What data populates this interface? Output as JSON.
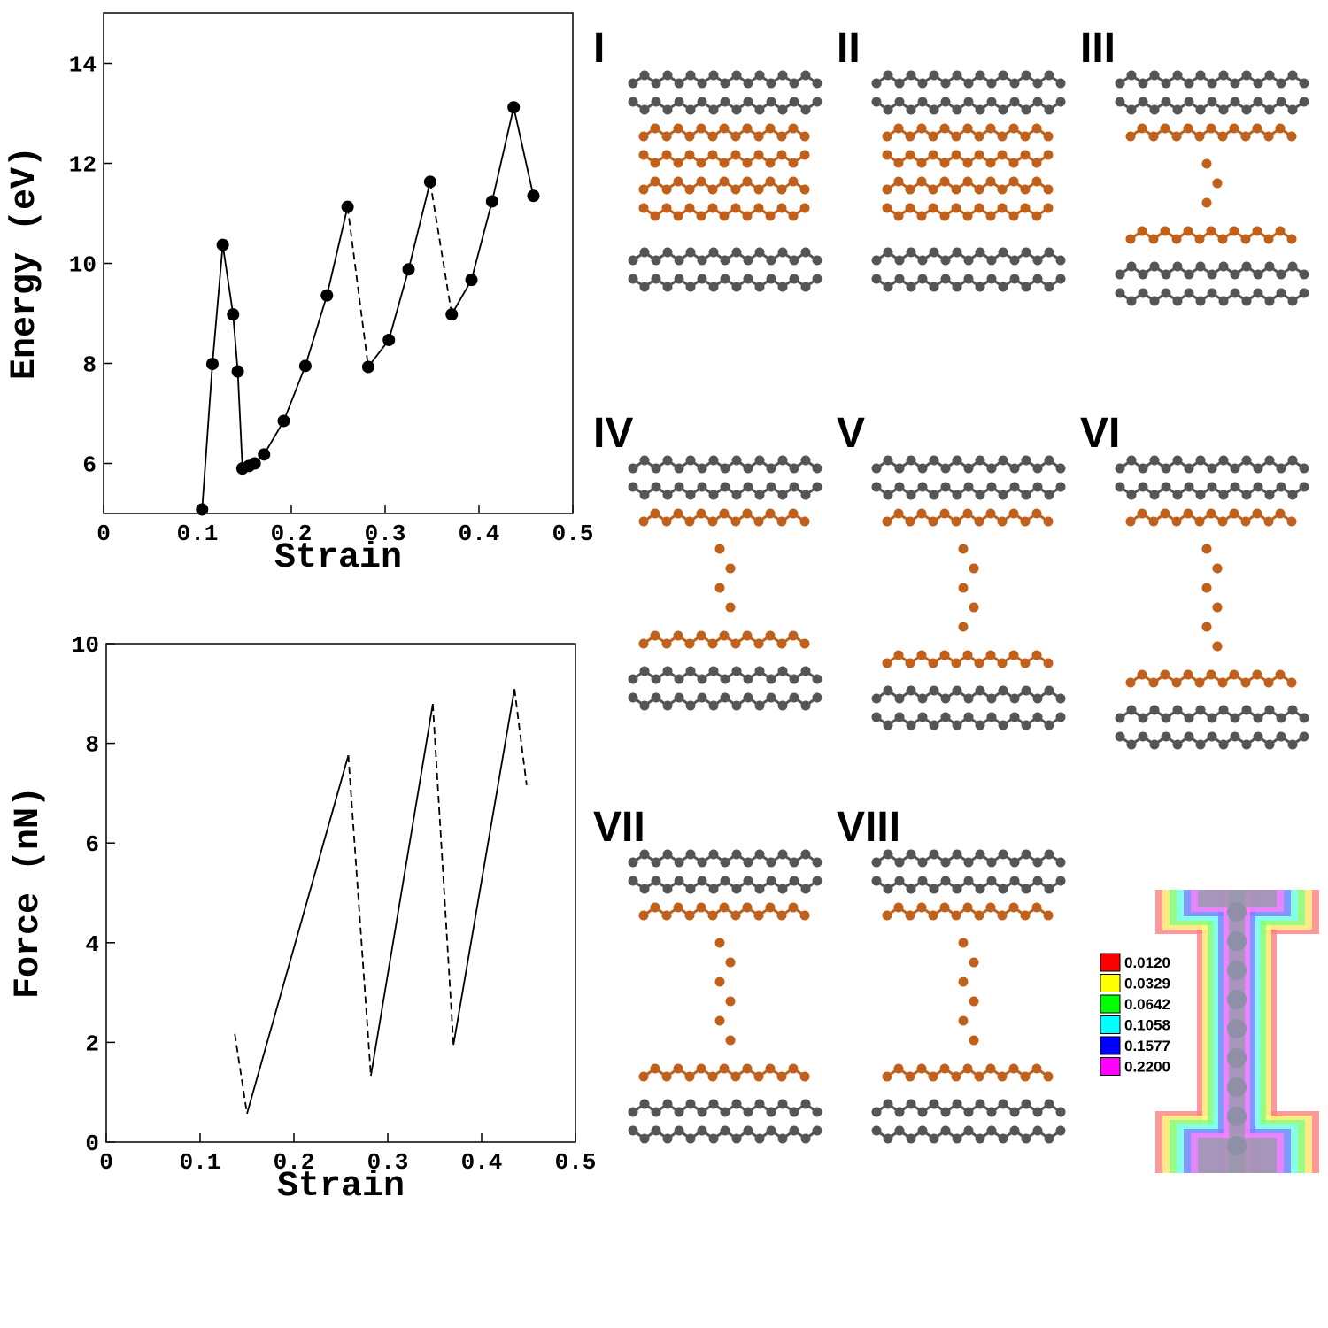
{
  "chart_data": [
    {
      "type": "line",
      "xlabel": "Strain",
      "ylabel": "Energy (eV)",
      "xlim": [
        0,
        0.5
      ],
      "ylim": [
        5,
        15
      ],
      "xticks": [
        0,
        0.1,
        0.2,
        0.3,
        0.4,
        0.5
      ],
      "yticks": [
        6,
        8,
        10,
        12,
        14
      ],
      "markers": true,
      "color": "#000000",
      "x": [
        0.105,
        0.116,
        0.127,
        0.138,
        0.143,
        0.148,
        0.155,
        0.161,
        0.171,
        0.192,
        0.215,
        0.238,
        0.26,
        0.282,
        0.304,
        0.325,
        0.348,
        0.371,
        0.392,
        0.414,
        0.437,
        0.458
      ],
      "values": [
        5.08,
        7.99,
        10.37,
        8.98,
        7.84,
        5.9,
        5.95,
        6.0,
        6.18,
        6.85,
        7.95,
        9.36,
        11.13,
        7.93,
        8.47,
        9.88,
        11.63,
        8.98,
        9.67,
        11.24,
        13.12,
        11.35
      ],
      "line_styles": [
        "solid",
        "solid",
        "solid",
        "solid",
        "solid",
        "solid",
        "solid",
        "solid",
        "solid",
        "solid",
        "solid",
        "solid",
        "dashed",
        "solid",
        "solid",
        "solid",
        "dashed",
        "solid",
        "solid",
        "solid",
        "solid"
      ]
    },
    {
      "type": "line",
      "xlabel": "Strain",
      "ylabel": "Force (nN)",
      "xlim": [
        0,
        0.5
      ],
      "ylim": [
        0,
        10
      ],
      "xticks": [
        0,
        0.1,
        0.2,
        0.3,
        0.4,
        0.5
      ],
      "yticks": [
        0,
        2,
        4,
        6,
        8,
        10
      ],
      "markers": false,
      "color": "#000000",
      "x": [
        0.137,
        0.15,
        0.258,
        0.282,
        0.348,
        0.37,
        0.435,
        0.448
      ],
      "values": [
        2.17,
        0.57,
        7.76,
        1.33,
        8.79,
        1.95,
        9.09,
        7.16
      ],
      "line_styles": [
        "dashed",
        "solid",
        "dashed",
        "solid",
        "dashed",
        "solid",
        "dashed"
      ]
    }
  ],
  "panels": [
    "I",
    "II",
    "III",
    "IV",
    "V",
    "VI",
    "VII",
    "VIII"
  ],
  "colorbar": {
    "labels": [
      "0.0120",
      "0.0329",
      "0.0642",
      "0.1058",
      "0.1577",
      "0.2200"
    ],
    "colors": [
      "#ff0000",
      "#ffff00",
      "#00ff00",
      "#00ffff",
      "#0000ff",
      "#ff00ff"
    ]
  }
}
